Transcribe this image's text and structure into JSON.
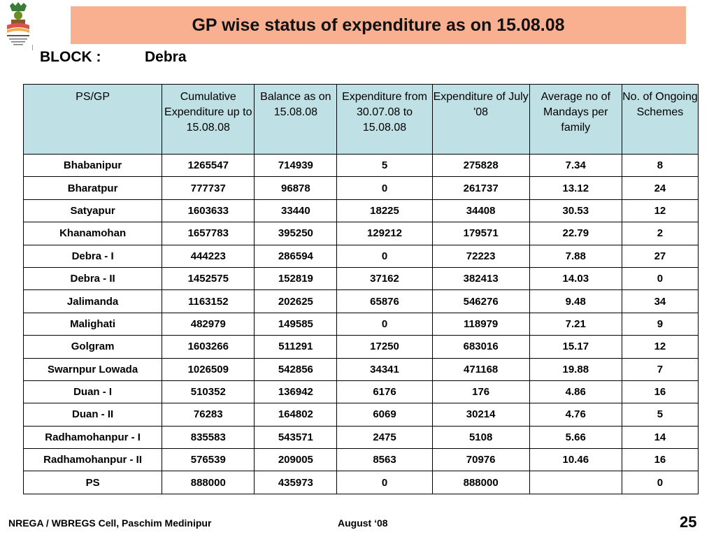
{
  "header": {
    "title": "GP wise status of expenditure as on 15.08.08"
  },
  "block": {
    "label": "BLOCK :",
    "value": "Debra"
  },
  "table": {
    "columns": [
      "PS/GP",
      "Cumulative Expenditure up to 15.08.08",
      "Balance as on 15.08.08",
      "Expenditure from 30.07.08 to 15.08.08",
      "Expenditure of  July '08",
      "Average no of Mandays per family",
      "No. of Ongoing Schemes"
    ],
    "rows": [
      [
        "Bhabanipur",
        "1265547",
        "714939",
        "5",
        "275828",
        "7.34",
        "8"
      ],
      [
        "Bharatpur",
        "777737",
        "96878",
        "0",
        "261737",
        "13.12",
        "24"
      ],
      [
        "Satyapur",
        "1603633",
        "33440",
        "18225",
        "34408",
        "30.53",
        "12"
      ],
      [
        "Khanamohan",
        "1657783",
        "395250",
        "129212",
        "179571",
        "22.79",
        "2"
      ],
      [
        "Debra - I",
        "444223",
        "286594",
        "0",
        "72223",
        "7.88",
        "27"
      ],
      [
        "Debra - II",
        "1452575",
        "152819",
        "37162",
        "382413",
        "14.03",
        "0"
      ],
      [
        "Jalimanda",
        "1163152",
        "202625",
        "65876",
        "546276",
        "9.48",
        "34"
      ],
      [
        "Malighati",
        "482979",
        "149585",
        "0",
        "118979",
        "7.21",
        "9"
      ],
      [
        "Golgram",
        "1603266",
        "511291",
        "17250",
        "683016",
        "15.17",
        "12"
      ],
      [
        "Swarnpur Lowada",
        "1026509",
        "542856",
        "34341",
        "471168",
        "19.88",
        "7"
      ],
      [
        "Duan - I",
        "510352",
        "136942",
        "6176",
        "176",
        "4.86",
        "16"
      ],
      [
        "Duan - II",
        "76283",
        "164802",
        "6069",
        "30214",
        "4.76",
        "5"
      ],
      [
        "Radhamohanpur - I",
        "835583",
        "543571",
        "2475",
        "5108",
        "5.66",
        "14"
      ],
      [
        "Radhamohanpur - II",
        "576539",
        "209005",
        "8563",
        "70976",
        "10.46",
        "16"
      ],
      [
        "PS",
        "888000",
        "435973",
        "0",
        "888000",
        "",
        "0"
      ]
    ]
  },
  "footer": {
    "org": "NREGA / WBREGS Cell, Paschim Medinipur",
    "date": "August ‘08",
    "page": "25"
  },
  "colors": {
    "title_band": "#f8b090",
    "header_fill": "#bfe0e4"
  },
  "icons": {
    "logo": "nrega-emblem-icon"
  }
}
